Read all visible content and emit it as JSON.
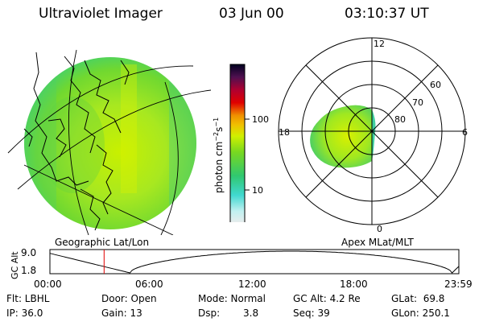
{
  "header": {
    "title": "Ultraviolet Imager",
    "date": "03 Jun 00",
    "time": "03:10:37 UT"
  },
  "colorbar": {
    "unit_main": "photon cm",
    "unit_sup1": "−2",
    "unit_mid": "s",
    "unit_sup2": "−1",
    "ticks": [
      {
        "label": "100",
        "value": 100
      },
      {
        "label": "10",
        "value": 10
      }
    ],
    "colors": [
      "#e8e8e8",
      "#c8f0f0",
      "#40d8d0",
      "#30c870",
      "#70d820",
      "#d8f000",
      "#f0b000",
      "#f08000",
      "#e00000",
      "#a00020",
      "#400040",
      "#000018"
    ]
  },
  "geographic_panel": {
    "label": "Geographic Lat/Lon"
  },
  "polar_panel": {
    "label": "Apex MLat/MLT",
    "mlt_labels": [
      "12",
      "18",
      "6",
      "0"
    ],
    "lat_labels": [
      "60",
      "70",
      "80"
    ]
  },
  "altitude_plot": {
    "ylabel": "GC Alt",
    "ytick_top": "9.0",
    "ytick_bottom": "1.8",
    "xticks": [
      "00:00",
      "06:00",
      "12:00",
      "18:00",
      "23:59"
    ],
    "current_time_hours": 3.18,
    "ymin": 1.8,
    "ymax": 9.0,
    "marker_color": "#e00000"
  },
  "info": {
    "flt": "Flt: LBHL",
    "door": "Door: Open",
    "mode": "Mode: Normal",
    "gc_alt": "GC Alt: 4.2 Re",
    "glat": "GLat:  69.8",
    "ip": "IP: 36.0",
    "gain": "Gain: 13",
    "dsp_label": "Dsp:",
    "dsp_value": "3.8",
    "seq": "Seq: 39",
    "glon": "GLon: 250.1"
  }
}
